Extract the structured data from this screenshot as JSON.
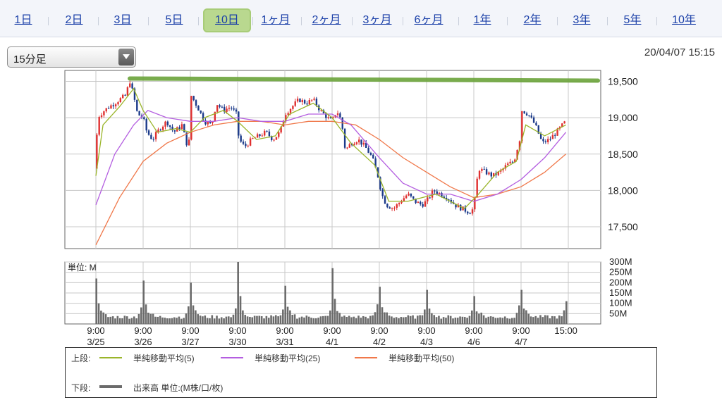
{
  "tabs": [
    {
      "label": "1日",
      "active": false
    },
    {
      "label": "2日",
      "active": false
    },
    {
      "label": "3日",
      "active": false
    },
    {
      "label": "5日",
      "active": false
    },
    {
      "label": "10日",
      "active": true
    },
    {
      "label": "1ヶ月",
      "active": false
    },
    {
      "label": "2ヶ月",
      "active": false
    },
    {
      "label": "3ヶ月",
      "active": false
    },
    {
      "label": "6ヶ月",
      "active": false
    },
    {
      "label": "1年",
      "active": false
    },
    {
      "label": "2年",
      "active": false
    },
    {
      "label": "3年",
      "active": false
    },
    {
      "label": "5年",
      "active": false
    },
    {
      "label": "10年",
      "active": false
    }
  ],
  "period_select": {
    "value": "15分足"
  },
  "timestamp": "20/04/07 15:15",
  "legend": {
    "upper_label": "上段:",
    "lower_label": "下段:",
    "ma5": "単純移動平均(5)",
    "ma25": "単純移動平均(25)",
    "ma50": "単純移動平均(50)",
    "volume": "出来高 単位:(M株/口/枚)"
  },
  "colors": {
    "ma5": "#9ab52a",
    "ma25": "#b45ee0",
    "ma50": "#f0784a",
    "up": "#e03030",
    "down": "#1b3a8a",
    "volume": "#6b6b6b",
    "highlight": "#6aa33a",
    "active_tab": "#b9d88f"
  },
  "chart_data": [
    {
      "type": "candlestick",
      "title": "",
      "ylim": [
        17200,
        19650
      ],
      "yticks": [
        17500,
        18000,
        18500,
        19000,
        19500
      ],
      "ytick_labels": [
        "17,500",
        "18,000",
        "18,500",
        "19,000",
        "19,500"
      ],
      "days": [
        "3/25",
        "3/26",
        "3/27",
        "3/30",
        "3/31",
        "4/1",
        "4/2",
        "4/3",
        "4/6",
        "4/7"
      ],
      "x_labels": [
        {
          "time": "9:00",
          "date": "3/25"
        },
        {
          "time": "9:00",
          "date": "3/26"
        },
        {
          "time": "9:00",
          "date": "3/27"
        },
        {
          "time": "9:00",
          "date": "3/30"
        },
        {
          "time": "9:00",
          "date": "3/31"
        },
        {
          "time": "9:00",
          "date": "4/1"
        },
        {
          "time": "9:00",
          "date": "4/2"
        },
        {
          "time": "9:00",
          "date": "4/3"
        },
        {
          "time": "9:00",
          "date": "4/6"
        },
        {
          "time": "9:00",
          "date": "4/7"
        },
        {
          "time": "15:00",
          "date": ""
        }
      ],
      "price_path": [
        {
          "x": 0.0,
          "p": 18300
        },
        {
          "x": 0.03,
          "p": 19000
        },
        {
          "x": 0.1,
          "p": 19050
        },
        {
          "x": 0.18,
          "p": 19100
        },
        {
          "x": 0.28,
          "p": 19150
        },
        {
          "x": 0.4,
          "p": 19200
        },
        {
          "x": 0.5,
          "p": 19250
        },
        {
          "x": 0.62,
          "p": 19300
        },
        {
          "x": 0.72,
          "p": 19500
        },
        {
          "x": 0.8,
          "p": 19300
        },
        {
          "x": 0.88,
          "p": 19050
        },
        {
          "x": 1.0,
          "p": 19000
        },
        {
          "x": 1.08,
          "p": 18800
        },
        {
          "x": 1.2,
          "p": 18700
        },
        {
          "x": 1.35,
          "p": 18850
        },
        {
          "x": 1.5,
          "p": 18950
        },
        {
          "x": 1.65,
          "p": 18800
        },
        {
          "x": 1.82,
          "p": 18900
        },
        {
          "x": 1.96,
          "p": 18550
        },
        {
          "x": 2.02,
          "p": 19300
        },
        {
          "x": 2.15,
          "p": 19150
        },
        {
          "x": 2.3,
          "p": 18950
        },
        {
          "x": 2.45,
          "p": 18900
        },
        {
          "x": 2.55,
          "p": 19200
        },
        {
          "x": 2.7,
          "p": 19100
        },
        {
          "x": 2.85,
          "p": 19150
        },
        {
          "x": 2.97,
          "p": 19050
        },
        {
          "x": 3.03,
          "p": 18700
        },
        {
          "x": 3.15,
          "p": 18600
        },
        {
          "x": 3.3,
          "p": 18700
        },
        {
          "x": 3.45,
          "p": 18750
        },
        {
          "x": 3.6,
          "p": 18800
        },
        {
          "x": 3.75,
          "p": 18700
        },
        {
          "x": 3.9,
          "p": 18800
        },
        {
          "x": 4.0,
          "p": 19050
        },
        {
          "x": 4.15,
          "p": 19150
        },
        {
          "x": 4.3,
          "p": 19250
        },
        {
          "x": 4.45,
          "p": 19200
        },
        {
          "x": 4.6,
          "p": 19250
        },
        {
          "x": 4.75,
          "p": 19100
        },
        {
          "x": 4.9,
          "p": 19000
        },
        {
          "x": 5.0,
          "p": 18950
        },
        {
          "x": 5.1,
          "p": 19100
        },
        {
          "x": 5.2,
          "p": 18950
        },
        {
          "x": 5.28,
          "p": 18550
        },
        {
          "x": 5.4,
          "p": 18650
        },
        {
          "x": 5.55,
          "p": 18700
        },
        {
          "x": 5.7,
          "p": 18600
        },
        {
          "x": 5.85,
          "p": 18450
        },
        {
          "x": 5.97,
          "p": 18200
        },
        {
          "x": 6.05,
          "p": 17950
        },
        {
          "x": 6.15,
          "p": 17800
        },
        {
          "x": 6.3,
          "p": 17750
        },
        {
          "x": 6.45,
          "p": 17850
        },
        {
          "x": 6.6,
          "p": 17950
        },
        {
          "x": 6.75,
          "p": 17850
        },
        {
          "x": 6.9,
          "p": 17800
        },
        {
          "x": 7.0,
          "p": 17850
        },
        {
          "x": 7.15,
          "p": 18000
        },
        {
          "x": 7.3,
          "p": 17950
        },
        {
          "x": 7.45,
          "p": 17900
        },
        {
          "x": 7.6,
          "p": 17800
        },
        {
          "x": 7.75,
          "p": 17750
        },
        {
          "x": 7.9,
          "p": 17700
        },
        {
          "x": 8.0,
          "p": 17750
        },
        {
          "x": 8.05,
          "p": 18050
        },
        {
          "x": 8.1,
          "p": 18300
        },
        {
          "x": 8.25,
          "p": 18250
        },
        {
          "x": 8.4,
          "p": 18200
        },
        {
          "x": 8.55,
          "p": 18250
        },
        {
          "x": 8.7,
          "p": 18350
        },
        {
          "x": 8.85,
          "p": 18400
        },
        {
          "x": 8.97,
          "p": 18700
        },
        {
          "x": 9.02,
          "p": 19100
        },
        {
          "x": 9.15,
          "p": 19050
        },
        {
          "x": 9.3,
          "p": 18900
        },
        {
          "x": 9.45,
          "p": 18650
        },
        {
          "x": 9.6,
          "p": 18700
        },
        {
          "x": 9.75,
          "p": 18800
        },
        {
          "x": 9.88,
          "p": 18900
        },
        {
          "x": 9.95,
          "p": 18950
        }
      ],
      "ma5": [
        {
          "x": 0.0,
          "p": 18200
        },
        {
          "x": 0.15,
          "p": 18900
        },
        {
          "x": 0.5,
          "p": 19150
        },
        {
          "x": 0.8,
          "p": 19400
        },
        {
          "x": 1.0,
          "p": 19100
        },
        {
          "x": 1.3,
          "p": 18800
        },
        {
          "x": 1.7,
          "p": 18850
        },
        {
          "x": 2.0,
          "p": 18800
        },
        {
          "x": 2.3,
          "p": 19000
        },
        {
          "x": 2.7,
          "p": 19100
        },
        {
          "x": 3.0,
          "p": 18950
        },
        {
          "x": 3.4,
          "p": 18700
        },
        {
          "x": 3.8,
          "p": 18750
        },
        {
          "x": 4.1,
          "p": 19050
        },
        {
          "x": 4.6,
          "p": 19200
        },
        {
          "x": 5.0,
          "p": 19000
        },
        {
          "x": 5.4,
          "p": 18650
        },
        {
          "x": 5.9,
          "p": 18350
        },
        {
          "x": 6.2,
          "p": 17850
        },
        {
          "x": 6.6,
          "p": 17850
        },
        {
          "x": 7.2,
          "p": 17950
        },
        {
          "x": 7.8,
          "p": 17750
        },
        {
          "x": 8.1,
          "p": 17950
        },
        {
          "x": 8.5,
          "p": 18250
        },
        {
          "x": 8.9,
          "p": 18400
        },
        {
          "x": 9.1,
          "p": 18900
        },
        {
          "x": 9.5,
          "p": 18750
        },
        {
          "x": 9.95,
          "p": 18900
        }
      ],
      "ma25": [
        {
          "x": 0.0,
          "p": 17800
        },
        {
          "x": 0.4,
          "p": 18500
        },
        {
          "x": 0.8,
          "p": 18900
        },
        {
          "x": 1.1,
          "p": 19100
        },
        {
          "x": 1.5,
          "p": 19000
        },
        {
          "x": 2.0,
          "p": 18950
        },
        {
          "x": 2.5,
          "p": 18950
        },
        {
          "x": 3.0,
          "p": 19000
        },
        {
          "x": 3.5,
          "p": 18950
        },
        {
          "x": 4.0,
          "p": 18950
        },
        {
          "x": 4.5,
          "p": 19050
        },
        {
          "x": 5.0,
          "p": 19050
        },
        {
          "x": 5.4,
          "p": 18900
        },
        {
          "x": 6.0,
          "p": 18450
        },
        {
          "x": 6.5,
          "p": 18100
        },
        {
          "x": 7.0,
          "p": 17950
        },
        {
          "x": 7.5,
          "p": 17950
        },
        {
          "x": 8.0,
          "p": 17850
        },
        {
          "x": 8.5,
          "p": 17950
        },
        {
          "x": 9.0,
          "p": 18150
        },
        {
          "x": 9.5,
          "p": 18450
        },
        {
          "x": 9.95,
          "p": 18800
        }
      ],
      "ma50": [
        {
          "x": 0.0,
          "p": 17250
        },
        {
          "x": 0.5,
          "p": 17900
        },
        {
          "x": 1.0,
          "p": 18400
        },
        {
          "x": 1.5,
          "p": 18650
        },
        {
          "x": 2.0,
          "p": 18800
        },
        {
          "x": 2.5,
          "p": 18900
        },
        {
          "x": 3.0,
          "p": 18950
        },
        {
          "x": 3.5,
          "p": 18950
        },
        {
          "x": 4.0,
          "p": 18900
        },
        {
          "x": 4.5,
          "p": 18950
        },
        {
          "x": 5.0,
          "p": 18950
        },
        {
          "x": 5.5,
          "p": 18900
        },
        {
          "x": 6.0,
          "p": 18700
        },
        {
          "x": 6.5,
          "p": 18450
        },
        {
          "x": 7.0,
          "p": 18250
        },
        {
          "x": 7.5,
          "p": 18050
        },
        {
          "x": 8.0,
          "p": 17900
        },
        {
          "x": 8.5,
          "p": 17950
        },
        {
          "x": 9.0,
          "p": 18050
        },
        {
          "x": 9.5,
          "p": 18250
        },
        {
          "x": 9.95,
          "p": 18500
        }
      ],
      "highlight_level": 19500
    },
    {
      "type": "bar",
      "title": "",
      "ylabel": "単位: M",
      "ylim": [
        0,
        300
      ],
      "yticks": [
        50,
        100,
        150,
        200,
        250,
        300
      ],
      "ytick_labels": [
        "50M",
        "100M",
        "150M",
        "200M",
        "250M",
        "300M"
      ],
      "day_peak_volumes": [
        220,
        210,
        200,
        300,
        185,
        270,
        180,
        165,
        135,
        165
      ],
      "day_close_spikes": [
        80,
        85,
        75,
        70,
        65,
        95,
        70,
        65,
        90,
        110
      ]
    }
  ]
}
